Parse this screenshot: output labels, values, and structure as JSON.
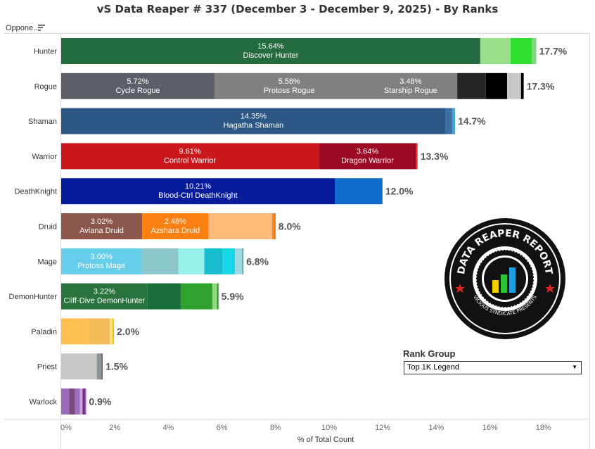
{
  "title": "vS Data Reaper # 337 (December 3 - December 9, 2025) - By Ranks",
  "row_header": "Oppone..",
  "rank_group": {
    "label": "Rank Group",
    "selected": "Top 1K Legend"
  },
  "logo": {
    "text_top": "DATA REAPER REPORT",
    "text_bottom": "VICIOUS SYNDICATE PRESENTS"
  },
  "chart_data": {
    "type": "bar",
    "orientation": "horizontal",
    "stacked": true,
    "title": "vS Data Reaper # 337 (December 3 - December 9, 2025) - By Ranks",
    "xlabel": "% of Total Count",
    "xlim": [
      0,
      19.5
    ],
    "xticks": [
      "0%",
      "2%",
      "4%",
      "6%",
      "8%",
      "10%",
      "12%",
      "14%",
      "16%",
      "18%"
    ],
    "tick_values": [
      0,
      2,
      4,
      6,
      8,
      10,
      12,
      14,
      16,
      18
    ],
    "rows": [
      {
        "class": "Hunter",
        "total": "17.7%",
        "segments": [
          {
            "value": 15.64,
            "label": "15.64%",
            "name": "Discover Hunter",
            "color": "#246b3f"
          },
          {
            "value": 1.13,
            "color": "#98e08c"
          },
          {
            "value": 0.8,
            "color": "#2fe02f"
          },
          {
            "value": 0.16,
            "color": "#7ed67e"
          }
        ]
      },
      {
        "class": "Rogue",
        "total": "17.3%",
        "segments": [
          {
            "value": 5.72,
            "label": "5.72%",
            "name": "Cycle Rogue",
            "color": "#5c5f67"
          },
          {
            "value": 5.58,
            "label": "5.58%",
            "name": "Protoss Rogue",
            "color": "#808080"
          },
          {
            "value": 3.48,
            "label": "3.48%",
            "name": "Starship Rogue",
            "color": "#808080"
          },
          {
            "value": 1.07,
            "color": "#262626"
          },
          {
            "value": 0.79,
            "color": "#000000"
          },
          {
            "value": 0.52,
            "color": "#c8c8c8"
          },
          {
            "value": 0.1,
            "color": "#000000"
          }
        ]
      },
      {
        "class": "Shaman",
        "total": "14.7%",
        "segments": [
          {
            "value": 14.35,
            "label": "14.35%",
            "name": "Hagatha Shaman",
            "color": "#2c5784"
          },
          {
            "value": 0.24,
            "color": "#3a6fa2"
          },
          {
            "value": 0.11,
            "color": "#3fa3d6"
          }
        ]
      },
      {
        "class": "Warrior",
        "total": "13.3%",
        "segments": [
          {
            "value": 9.61,
            "label": "9.61%",
            "name": "Control Warrior",
            "color": "#c9171b"
          },
          {
            "value": 3.64,
            "label": "3.64%",
            "name": "Dragon Warrior",
            "color": "#9c0a24"
          },
          {
            "value": 0.05,
            "color": "#ee3333"
          }
        ]
      },
      {
        "class": "DeathKnight",
        "total": "12.0%",
        "segments": [
          {
            "value": 10.21,
            "label": "10.21%",
            "name": "Blood-Ctrl DeathKnight",
            "color": "#061b9a"
          },
          {
            "value": 1.78,
            "color": "#0f6bcc"
          }
        ]
      },
      {
        "class": "Druid",
        "total": "8.0%",
        "segments": [
          {
            "value": 3.02,
            "label": "3.02%",
            "name": "Aviana Druid",
            "color": "#8b574a"
          },
          {
            "value": 2.48,
            "label": "2.48%",
            "name": "Azshara Druid",
            "color": "#fc7f12",
            "textColor": "#000"
          },
          {
            "value": 2.37,
            "color": "#ffb978"
          },
          {
            "value": 0.08,
            "color": "#f28a26"
          },
          {
            "value": 0.05,
            "color": "#e07012"
          }
        ]
      },
      {
        "class": "Mage",
        "total": "6.8%",
        "segments": [
          {
            "value": 3.0,
            "label": "3.00%",
            "name": "Protoss Mage",
            "color": "#66cdeb",
            "textColor": "#000"
          },
          {
            "value": 1.37,
            "color": "#8cc6cd"
          },
          {
            "value": 0.97,
            "color": "#98f0ec"
          },
          {
            "value": 0.68,
            "color": "#17bcd0"
          },
          {
            "value": 0.47,
            "color": "#18d8e8"
          },
          {
            "value": 0.27,
            "color": "#a0d8e2"
          },
          {
            "value": 0.04,
            "color": "#1b9cc0"
          }
        ]
      },
      {
        "class": "DemonHunter",
        "total": "5.9%",
        "segments": [
          {
            "value": 3.22,
            "label": "3.22%",
            "name": "Cliff-Dive DemonHunter",
            "color": "#28743c"
          },
          {
            "value": 1.24,
            "color": "#186e38"
          },
          {
            "value": 1.18,
            "color": "#2ea12e"
          },
          {
            "value": 0.18,
            "color": "#90d880"
          },
          {
            "value": 0.05,
            "color": "#228b22"
          }
        ]
      },
      {
        "class": "Paladin",
        "total": "2.0%",
        "segments": [
          {
            "value": 1.0,
            "color": "#ffbf50"
          },
          {
            "value": 0.82,
            "color": "#f5bc5a"
          },
          {
            "value": 0.1,
            "color": "#ffe080"
          },
          {
            "value": 0.05,
            "color": "#f0c000"
          }
        ]
      },
      {
        "class": "Priest",
        "total": "1.5%",
        "segments": [
          {
            "value": 1.33,
            "color": "#c8c8c8"
          },
          {
            "value": 0.17,
            "color": "#8c9497"
          },
          {
            "value": 0.05,
            "color": "#666666"
          }
        ]
      },
      {
        "class": "Warlock",
        "total": "0.9%",
        "segments": [
          {
            "value": 0.3,
            "color": "#9b6bbb"
          },
          {
            "value": 0.21,
            "color": "#7a4a7a"
          },
          {
            "value": 0.19,
            "color": "#a070c0"
          },
          {
            "value": 0.1,
            "color": "#c9a8d8"
          },
          {
            "value": 0.08,
            "color": "#6a2a7a"
          },
          {
            "value": 0.05,
            "color": "#a050e0"
          }
        ]
      }
    ]
  }
}
